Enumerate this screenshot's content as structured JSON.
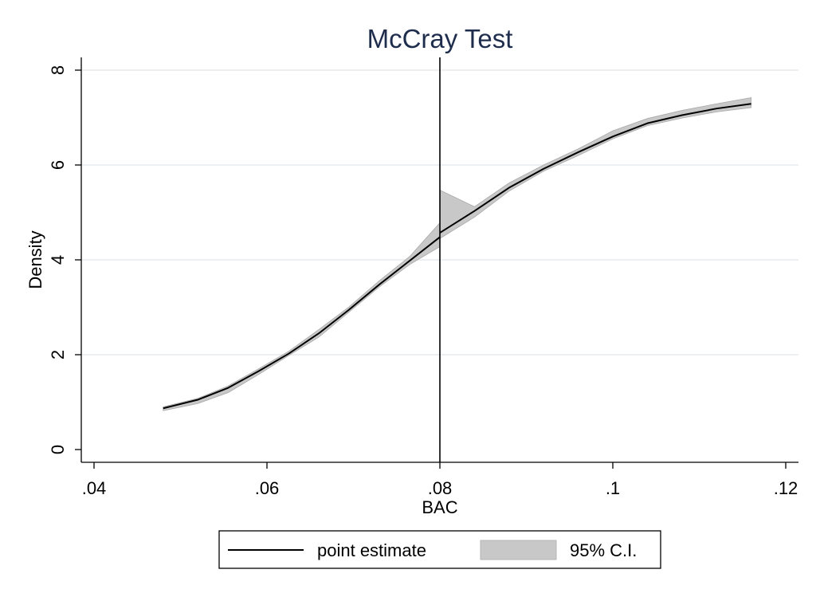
{
  "chart_data": {
    "type": "line",
    "title": "McCray Test",
    "xlabel": "BAC",
    "ylabel": "Density",
    "xlim": [
      0.04,
      0.12
    ],
    "ylim": [
      0,
      8
    ],
    "x_ticks": [
      {
        "value": 0.04,
        "label": ".04"
      },
      {
        "value": 0.06,
        "label": ".06"
      },
      {
        "value": 0.08,
        "label": ".08"
      },
      {
        "value": 0.1,
        "label": ".1"
      },
      {
        "value": 0.12,
        "label": ".12"
      }
    ],
    "y_ticks": [
      {
        "value": 0,
        "label": "0"
      },
      {
        "value": 2,
        "label": "2"
      },
      {
        "value": 4,
        "label": "4"
      },
      {
        "value": 6,
        "label": "6"
      },
      {
        "value": 8,
        "label": "8"
      }
    ],
    "grid": true,
    "cutoff": 0.08,
    "legend_position": "bottom",
    "colors": {
      "line": "#000000",
      "band": "#c8c8c8",
      "band_edge": "#a9a9a9",
      "title": "#1f2d4d",
      "grid": "#e6ecef"
    },
    "series": [
      {
        "name": "point estimate",
        "role": "line",
        "segments": [
          {
            "x": [
              0.048,
              0.052,
              0.0555,
              0.059,
              0.0625,
              0.066,
              0.0695,
              0.073,
              0.0765,
              0.08
            ],
            "y": [
              0.87,
              1.05,
              1.3,
              1.65,
              2.02,
              2.45,
              2.95,
              3.48,
              3.98,
              4.48
            ]
          },
          {
            "x": [
              0.08,
              0.084,
              0.088,
              0.092,
              0.096,
              0.1,
              0.104,
              0.108,
              0.112,
              0.116
            ],
            "y": [
              4.57,
              5.03,
              5.52,
              5.92,
              6.27,
              6.6,
              6.88,
              7.05,
              7.19,
              7.29
            ]
          }
        ]
      },
      {
        "name": "95% C.I.",
        "role": "band",
        "segments": [
          {
            "x": [
              0.048,
              0.052,
              0.0555,
              0.059,
              0.0625,
              0.066,
              0.0695,
              0.073,
              0.0765,
              0.08
            ],
            "lower": [
              0.82,
              0.97,
              1.2,
              1.58,
              1.98,
              2.37,
              2.9,
              3.43,
              3.9,
              4.28
            ],
            "upper": [
              0.9,
              1.08,
              1.34,
              1.7,
              2.07,
              2.53,
              3.01,
              3.56,
              4.07,
              4.78
            ]
          },
          {
            "x": [
              0.08,
              0.084,
              0.088,
              0.092,
              0.096,
              0.1,
              0.104,
              0.108,
              0.112,
              0.116
            ],
            "lower": [
              4.45,
              4.9,
              5.45,
              5.87,
              6.2,
              6.55,
              6.83,
              6.99,
              7.12,
              7.21
            ],
            "upper": [
              5.47,
              5.12,
              5.62,
              6.0,
              6.34,
              6.72,
              6.98,
              7.15,
              7.29,
              7.42
            ]
          }
        ]
      }
    ]
  }
}
